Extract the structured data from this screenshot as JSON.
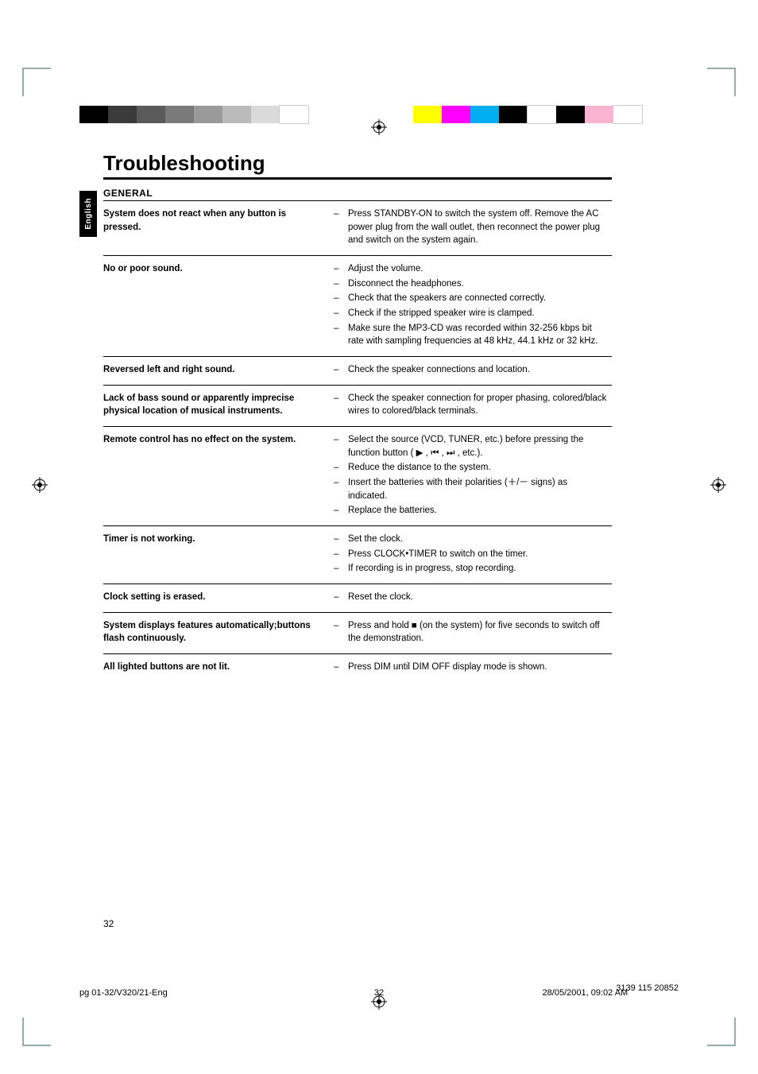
{
  "colorbar_left": [
    "#000000",
    "#3b3b3b",
    "#5a5a5a",
    "#7a7a7a",
    "#9a9a9a",
    "#bababa",
    "#dadada",
    "#ffffff"
  ],
  "colorbar_right": [
    "#ffff00",
    "#ff00ff",
    "#00aeef",
    "#000000",
    "#ffffff",
    "#000000",
    "#f8b4d0",
    "#ffffff"
  ],
  "heading": "Troubleshooting",
  "side_tab": "English",
  "section_head": "GENERAL",
  "rows": [
    {
      "problem": "System does not react when any button is pressed.",
      "solutions": [
        "Press STANDBY-ON to switch the system off. Remove the AC power plug from the wall outlet, then reconnect the power plug and switch on the system again."
      ]
    },
    {
      "problem": "No or poor sound.",
      "solutions": [
        "Adjust the volume.",
        "Disconnect the headphones.",
        "Check that the speakers are connected correctly.",
        "Check if the stripped speaker wire is clamped.",
        "Make sure the MP3-CD was recorded within 32-256 kbps bit rate with sampling frequencies at 48 kHz, 44.1 kHz or 32 kHz."
      ]
    },
    {
      "problem": "Reversed left and right sound.",
      "solutions": [
        "Check the speaker connections and location."
      ]
    },
    {
      "problem": "Lack of bass sound or apparently imprecise physical location of musical instruments.",
      "solutions": [
        "Check the speaker connection for proper phasing, colored/black wires to colored/black terminals."
      ]
    },
    {
      "problem": "Remote control has no effect on the system.",
      "solutions": [
        "Select the source (VCD, TUNER, etc.) before pressing the function button ( ▶ , ⏮ , ⏭ , etc.).",
        "Reduce the distance to the system.",
        "Insert the batteries with their polarities (＋/－ signs) as indicated.",
        "Replace the batteries."
      ]
    },
    {
      "problem": "Timer is not working.",
      "solutions": [
        "Set the clock.",
        "Press CLOCK•TIMER to switch on the timer.",
        "If recording is in progress, stop recording."
      ]
    },
    {
      "problem": "Clock setting is erased.",
      "solutions": [
        "Reset the clock."
      ]
    },
    {
      "problem": "System displays features automatically;buttons flash continuously.",
      "solutions": [
        "Press and hold ■ (on the system) for five seconds to switch off the demonstration."
      ]
    },
    {
      "problem": "All lighted buttons are not lit.",
      "solutions": [
        "Press DIM until DIM OFF display mode is shown."
      ]
    }
  ],
  "page_number": "32",
  "footer": {
    "left": "pg 01-32/V320/21-Eng",
    "mid": "32",
    "right_a": "28/05/2001, 09:02 AM",
    "right_b": "3139 115 20852"
  }
}
